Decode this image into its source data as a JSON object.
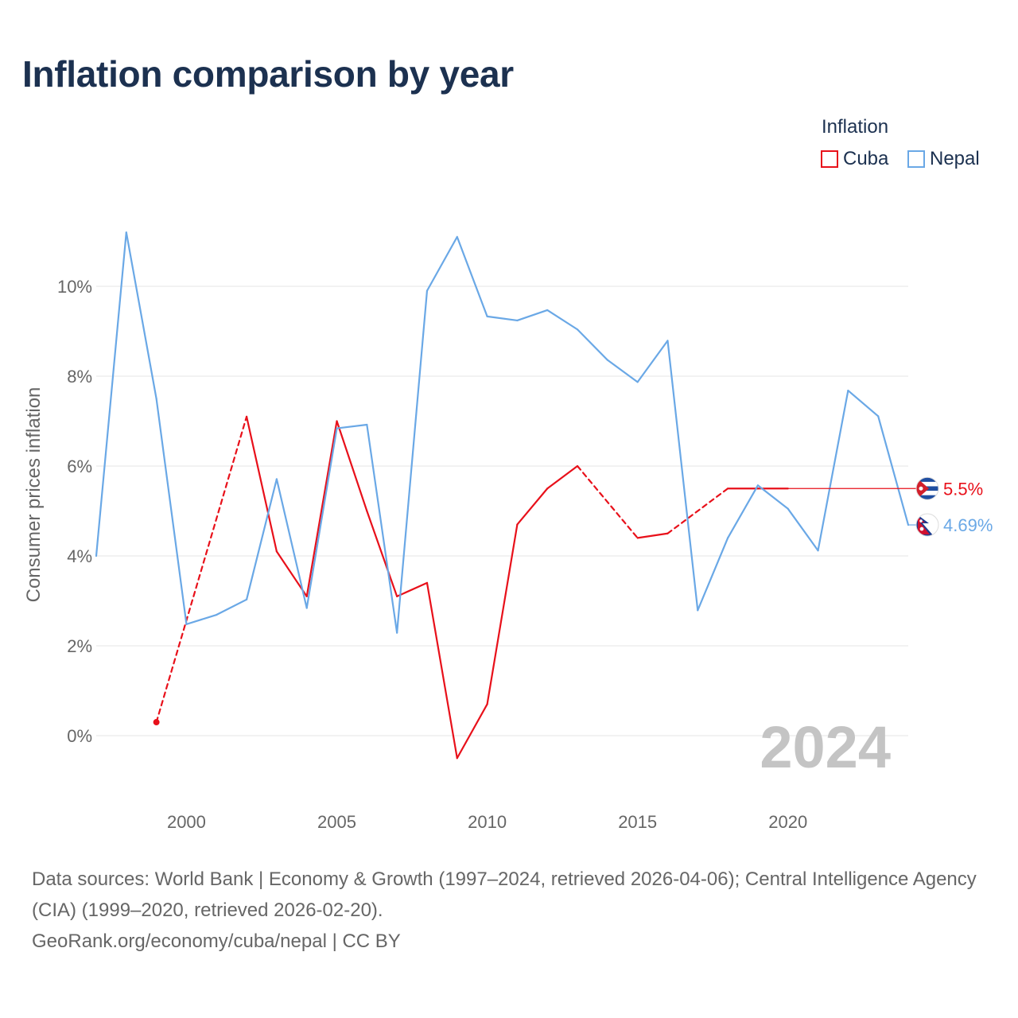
{
  "title": "Inflation comparison by year",
  "legend": {
    "title": "Inflation",
    "items": [
      {
        "label": "Cuba",
        "color": "#e8101a"
      },
      {
        "label": "Nepal",
        "color": "#6aa8e6"
      }
    ]
  },
  "chart_data": {
    "type": "line",
    "title": "Inflation comparison by year",
    "xlabel": "",
    "ylabel": "Consumer prices inflation",
    "xlim": [
      1997,
      2024
    ],
    "ylim": [
      -1.5,
      11.5
    ],
    "x_ticks": [
      2000,
      2005,
      2010,
      2015,
      2020
    ],
    "x_tick_labels": [
      "2000",
      "2005",
      "2010",
      "2015",
      "2020"
    ],
    "y_ticks": [
      0,
      2,
      4,
      6,
      8,
      10
    ],
    "y_tick_labels": [
      "0%",
      "2%",
      "4%",
      "6%",
      "8%",
      "10%"
    ],
    "grid": true,
    "year_watermark": "2024",
    "series": [
      {
        "name": "Cuba",
        "color": "#e8101a",
        "end_label": "5.5%",
        "end_value": 5.5,
        "points": [
          [
            1999,
            0.3
          ],
          [
            2002,
            7.1
          ],
          [
            2003,
            4.1
          ],
          [
            2004,
            3.1
          ],
          [
            2005,
            7.0
          ],
          [
            2006,
            5.0
          ],
          [
            2007,
            3.1
          ],
          [
            2008,
            3.4
          ],
          [
            2009,
            -0.5
          ],
          [
            2010,
            0.7
          ],
          [
            2011,
            4.7
          ],
          [
            2012,
            5.5
          ],
          [
            2013,
            6.0
          ],
          [
            2015,
            4.4
          ],
          [
            2016,
            4.5
          ],
          [
            2018,
            5.5
          ],
          [
            2019,
            5.5
          ],
          [
            2020,
            5.5
          ]
        ],
        "gaps": [
          [
            1999,
            2002
          ],
          [
            2013,
            2015
          ],
          [
            2016,
            2018
          ]
        ]
      },
      {
        "name": "Nepal",
        "color": "#6aa8e6",
        "end_label": "4.69%",
        "end_value": 4.69,
        "points": [
          [
            1997,
            4.0
          ],
          [
            1998,
            11.2
          ],
          [
            1999,
            7.5
          ],
          [
            2000,
            2.48
          ],
          [
            2001,
            2.69
          ],
          [
            2002,
            3.03
          ],
          [
            2003,
            5.71
          ],
          [
            2004,
            2.84
          ],
          [
            2005,
            6.84
          ],
          [
            2006,
            6.92
          ],
          [
            2007,
            2.29
          ],
          [
            2008,
            9.9
          ],
          [
            2009,
            11.1
          ],
          [
            2010,
            9.33
          ],
          [
            2011,
            9.24
          ],
          [
            2012,
            9.47
          ],
          [
            2013,
            9.04
          ],
          [
            2014,
            8.36
          ],
          [
            2015,
            7.87
          ],
          [
            2016,
            8.79
          ],
          [
            2017,
            2.79
          ],
          [
            2018,
            4.4
          ],
          [
            2019,
            5.57
          ],
          [
            2020,
            5.05
          ],
          [
            2021,
            4.12
          ],
          [
            2022,
            7.68
          ],
          [
            2023,
            7.11
          ],
          [
            2024,
            4.69
          ]
        ],
        "gaps": []
      }
    ]
  },
  "source": {
    "line1": "Data sources: World Bank | Economy & Growth (1997–2024, retrieved 2026-04-06); Central Intelligence Agency (CIA) (1999–2020, retrieved 2026-02-20).",
    "line2": "GeoRank.org/economy/cuba/nepal | CC BY"
  }
}
